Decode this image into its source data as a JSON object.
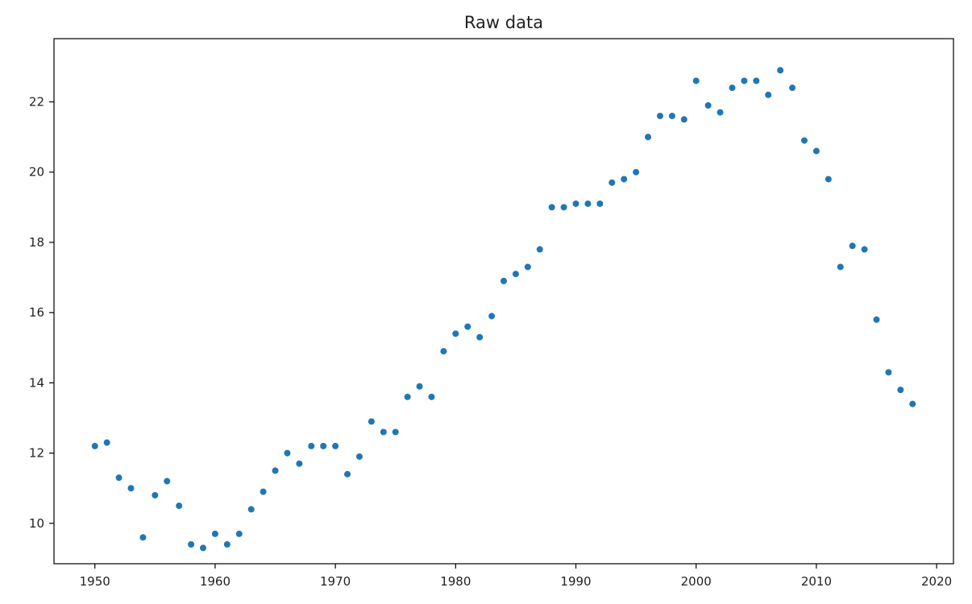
{
  "chart_data": {
    "type": "scatter",
    "title": "Raw data",
    "xlabel": "",
    "ylabel": "",
    "xlim": [
      1946.6,
      1821.4
    ],
    "ylim": [
      8.85,
      23.8
    ],
    "x_ticks": [
      1950,
      1960,
      1970,
      1980,
      1990,
      2000,
      2010,
      2020
    ],
    "y_ticks": [
      10,
      12,
      14,
      16,
      18,
      20,
      22
    ],
    "grid": false,
    "legend": "none",
    "colors": {
      "points": "#1f77b4",
      "axes": "#000000",
      "text": "#222222",
      "background": "#ffffff"
    },
    "series": [
      {
        "x": [
          1950,
          1951,
          1952,
          1953,
          1954,
          1955,
          1956,
          1957,
          1958,
          1959,
          1960,
          1961,
          1962,
          1963,
          1964,
          1965,
          1966,
          1967,
          1968,
          1969,
          1970,
          1971,
          1972,
          1973,
          1974,
          1975,
          1976,
          1977,
          1978,
          1979,
          1980,
          1981,
          1982,
          1983,
          1984,
          1985,
          1986,
          1987,
          1988,
          1989,
          1990,
          1991,
          1992,
          1993,
          1994,
          1995,
          1996,
          1997,
          1998,
          1999,
          2000,
          2001,
          2002,
          2003,
          2004,
          2005,
          2006,
          2007,
          2008,
          2009,
          2010,
          2011,
          2012,
          2013,
          2014,
          2015,
          2016,
          2017,
          2018
        ],
        "y": [
          12.2,
          12.3,
          11.3,
          11.0,
          9.6,
          10.8,
          11.2,
          10.5,
          9.4,
          9.3,
          9.7,
          9.4,
          9.7,
          10.4,
          10.9,
          11.5,
          12.0,
          11.7,
          12.2,
          12.2,
          12.2,
          11.4,
          11.9,
          12.9,
          12.6,
          12.6,
          13.6,
          13.9,
          13.6,
          14.9,
          15.4,
          15.6,
          15.3,
          15.9,
          16.9,
          17.1,
          17.3,
          17.8,
          19.0,
          19.0,
          19.1,
          19.1,
          19.1,
          19.7,
          19.8,
          20.0,
          21.0,
          21.6,
          21.6,
          21.5,
          22.6,
          21.9,
          21.7,
          22.4,
          22.6,
          22.6,
          22.2,
          22.9,
          22.4,
          20.9,
          20.6,
          19.8,
          17.3,
          17.9,
          17.8,
          15.8,
          14.3,
          13.8,
          13.4
        ]
      }
    ]
  }
}
